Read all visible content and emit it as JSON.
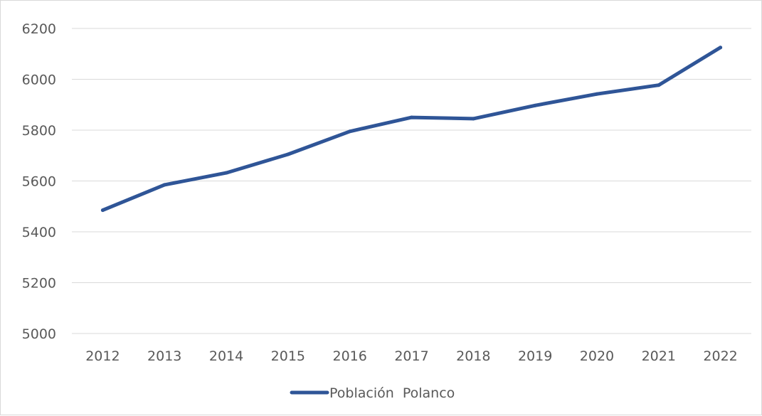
{
  "chart_data": {
    "type": "line",
    "title": "",
    "xlabel": "",
    "ylabel": "",
    "categories": [
      "2012",
      "2013",
      "2014",
      "2015",
      "2016",
      "2017",
      "2018",
      "2019",
      "2020",
      "2021",
      "2022"
    ],
    "series": [
      {
        "name": "Población  Polanco",
        "values": [
          5485,
          5585,
          5632,
          5705,
          5795,
          5850,
          5845,
          5897,
          5942,
          5977,
          6125
        ],
        "color": "#2f5597"
      }
    ],
    "ylim": [
      5000,
      6200
    ],
    "yticks": [
      5000,
      5200,
      5400,
      5600,
      5800,
      6000,
      6200
    ],
    "grid": true,
    "legend_position": "bottom"
  }
}
